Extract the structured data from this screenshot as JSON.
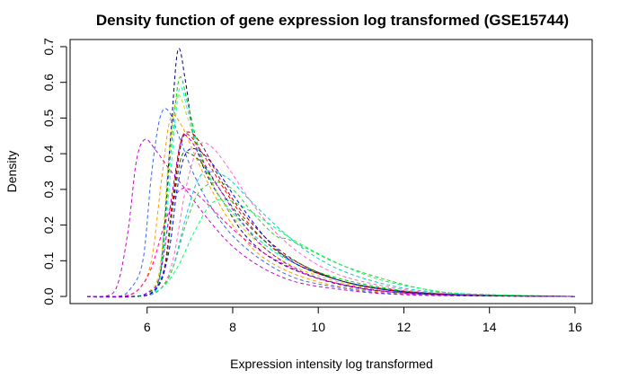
{
  "chart_data": {
    "type": "line",
    "title": "Density function of gene expression log transformed (GSE15744)",
    "xlabel": "Expression intensity log transformed",
    "ylabel": "Density",
    "xlim": [
      4.2,
      16.4
    ],
    "ylim": [
      -0.02,
      0.72
    ],
    "xticks": [
      6,
      8,
      10,
      12,
      14,
      16
    ],
    "yticks": [
      0.0,
      0.1,
      0.2,
      0.3,
      0.4,
      0.5,
      0.6,
      0.7
    ],
    "grid": false,
    "legend": "none",
    "line_style": "dashed",
    "series": [
      {
        "color": "#000080",
        "x": [
          4.6,
          5.6,
          6.0,
          6.3,
          6.55,
          6.72,
          6.9,
          7.1,
          7.4,
          7.8,
          8.3,
          9.0,
          10.0,
          11.0,
          12.0,
          13.0,
          14.0,
          16.0
        ],
        "y": [
          0,
          0,
          0.01,
          0.06,
          0.45,
          0.69,
          0.6,
          0.44,
          0.34,
          0.26,
          0.17,
          0.1,
          0.05,
          0.022,
          0.01,
          0.005,
          0.002,
          0
        ]
      },
      {
        "color": "#00cc00",
        "x": [
          4.6,
          5.6,
          6.0,
          6.3,
          6.55,
          6.75,
          6.95,
          7.2,
          7.6,
          8.1,
          8.8,
          9.5,
          10.5,
          11.5,
          12.5,
          14.0,
          16.0
        ],
        "y": [
          0,
          0,
          0.01,
          0.06,
          0.4,
          0.61,
          0.54,
          0.42,
          0.3,
          0.22,
          0.14,
          0.09,
          0.05,
          0.025,
          0.01,
          0.003,
          0
        ]
      },
      {
        "color": "#00ffcc",
        "x": [
          4.6,
          5.6,
          6.0,
          6.3,
          6.55,
          6.75,
          6.95,
          7.2,
          7.6,
          8.1,
          8.8,
          9.5,
          10.5,
          11.5,
          12.5,
          14.0,
          16.0
        ],
        "y": [
          0,
          0,
          0.01,
          0.05,
          0.35,
          0.58,
          0.52,
          0.41,
          0.3,
          0.22,
          0.14,
          0.09,
          0.045,
          0.022,
          0.01,
          0.003,
          0
        ]
      },
      {
        "color": "#cccc00",
        "x": [
          4.6,
          5.6,
          6.0,
          6.3,
          6.5,
          6.7,
          6.95,
          7.2,
          7.6,
          8.1,
          8.8,
          9.5,
          10.5,
          11.5,
          12.5,
          14.0,
          16.0
        ],
        "y": [
          0,
          0,
          0.01,
          0.08,
          0.38,
          0.56,
          0.5,
          0.4,
          0.3,
          0.21,
          0.13,
          0.08,
          0.04,
          0.02,
          0.008,
          0.002,
          0
        ]
      },
      {
        "color": "#ff9900",
        "x": [
          4.6,
          5.4,
          5.8,
          6.1,
          6.35,
          6.55,
          6.8,
          7.1,
          7.5,
          8.0,
          8.6,
          9.3,
          10.2,
          11.2,
          12.5,
          14.0,
          16.0
        ],
        "y": [
          0,
          0,
          0.02,
          0.1,
          0.34,
          0.5,
          0.48,
          0.4,
          0.3,
          0.2,
          0.12,
          0.07,
          0.035,
          0.016,
          0.006,
          0.002,
          0
        ]
      },
      {
        "color": "#3366ff",
        "x": [
          4.6,
          5.3,
          5.6,
          5.9,
          6.1,
          6.3,
          6.5,
          6.8,
          7.1,
          7.5,
          8.0,
          8.7,
          9.5,
          10.5,
          11.5,
          13.0,
          16.0
        ],
        "y": [
          0,
          0,
          0.02,
          0.1,
          0.34,
          0.5,
          0.52,
          0.43,
          0.34,
          0.25,
          0.17,
          0.1,
          0.05,
          0.025,
          0.01,
          0.003,
          0
        ]
      },
      {
        "color": "#cc00cc",
        "x": [
          4.6,
          5.0,
          5.3,
          5.55,
          5.75,
          5.95,
          6.2,
          6.5,
          6.9,
          7.4,
          8.0,
          8.7,
          9.5,
          10.5,
          11.5,
          13.0,
          16.0
        ],
        "y": [
          0,
          0,
          0.03,
          0.18,
          0.38,
          0.44,
          0.41,
          0.36,
          0.3,
          0.22,
          0.14,
          0.08,
          0.04,
          0.02,
          0.008,
          0.002,
          0
        ]
      },
      {
        "color": "#ff00aa",
        "x": [
          4.6,
          5.4,
          5.8,
          6.1,
          6.4,
          6.7,
          7.0,
          7.4,
          7.9,
          8.5,
          9.2,
          10.0,
          11.0,
          12.0,
          13.5,
          16.0
        ],
        "y": [
          0,
          0,
          0.02,
          0.08,
          0.2,
          0.29,
          0.3,
          0.26,
          0.2,
          0.14,
          0.09,
          0.05,
          0.025,
          0.01,
          0.004,
          0
        ]
      },
      {
        "color": "#ff0000",
        "x": [
          4.6,
          5.6,
          6.1,
          6.4,
          6.6,
          6.8,
          7.0,
          7.3,
          7.7,
          8.2,
          8.8,
          9.5,
          10.5,
          11.5,
          12.5,
          14.0,
          16.0
        ],
        "y": [
          0,
          0,
          0.01,
          0.08,
          0.28,
          0.44,
          0.45,
          0.4,
          0.32,
          0.23,
          0.15,
          0.09,
          0.045,
          0.022,
          0.01,
          0.003,
          0
        ]
      },
      {
        "color": "#8b0000",
        "x": [
          4.6,
          5.7,
          6.1,
          6.4,
          6.6,
          6.8,
          7.0,
          7.3,
          7.7,
          8.2,
          8.9,
          9.6,
          10.5,
          11.5,
          12.5,
          14.0,
          16.0
        ],
        "y": [
          0,
          0,
          0.01,
          0.07,
          0.26,
          0.43,
          0.46,
          0.42,
          0.33,
          0.24,
          0.15,
          0.09,
          0.045,
          0.02,
          0.009,
          0.003,
          0
        ]
      },
      {
        "color": "#006400",
        "x": [
          4.6,
          5.7,
          6.1,
          6.4,
          6.6,
          6.8,
          7.0,
          7.3,
          7.7,
          8.2,
          8.9,
          9.6,
          10.5,
          11.5,
          12.5,
          14.0,
          16.0
        ],
        "y": [
          0,
          0,
          0.01,
          0.07,
          0.25,
          0.39,
          0.4,
          0.37,
          0.3,
          0.22,
          0.14,
          0.09,
          0.045,
          0.02,
          0.009,
          0.003,
          0
        ]
      },
      {
        "color": "#ff66cc",
        "x": [
          4.6,
          5.8,
          6.3,
          6.6,
          6.9,
          7.2,
          7.5,
          7.9,
          8.4,
          9.0,
          9.7,
          10.5,
          11.5,
          12.5,
          14.0,
          16.0
        ],
        "y": [
          0,
          0,
          0.02,
          0.1,
          0.3,
          0.42,
          0.42,
          0.36,
          0.27,
          0.18,
          0.11,
          0.06,
          0.03,
          0.012,
          0.004,
          0
        ]
      },
      {
        "color": "#00cccc",
        "x": [
          4.6,
          5.8,
          6.3,
          6.6,
          6.9,
          7.2,
          7.5,
          7.9,
          8.4,
          9.0,
          9.7,
          10.5,
          11.5,
          12.5,
          14.0,
          16.0
        ],
        "y": [
          0,
          0,
          0.02,
          0.08,
          0.22,
          0.33,
          0.35,
          0.33,
          0.27,
          0.2,
          0.13,
          0.075,
          0.036,
          0.015,
          0.005,
          0
        ]
      },
      {
        "color": "#33cc33",
        "x": [
          4.6,
          5.8,
          6.3,
          6.6,
          6.9,
          7.2,
          7.6,
          8.0,
          8.5,
          9.0,
          9.3,
          9.8,
          10.5,
          11.5,
          12.5,
          13.5,
          16.0
        ],
        "y": [
          0,
          0,
          0.02,
          0.08,
          0.2,
          0.29,
          0.32,
          0.3,
          0.23,
          0.17,
          0.16,
          0.13,
          0.09,
          0.05,
          0.02,
          0.007,
          0
        ]
      },
      {
        "color": "#00ff66",
        "x": [
          4.6,
          5.8,
          6.3,
          6.7,
          7.1,
          7.5,
          7.9,
          8.4,
          8.9,
          9.4,
          10.0,
          10.7,
          11.5,
          12.5,
          13.5,
          16.0
        ],
        "y": [
          0,
          0,
          0.02,
          0.08,
          0.18,
          0.26,
          0.27,
          0.24,
          0.2,
          0.16,
          0.12,
          0.08,
          0.045,
          0.02,
          0.007,
          0
        ]
      },
      {
        "color": "#0000ff",
        "x": [
          4.6,
          5.7,
          6.2,
          6.5,
          6.7,
          6.9,
          7.2,
          7.6,
          8.1,
          8.8,
          9.5,
          10.5,
          11.5,
          12.5,
          14.0,
          16.0
        ],
        "y": [
          0,
          0,
          0.02,
          0.12,
          0.3,
          0.4,
          0.41,
          0.36,
          0.27,
          0.16,
          0.09,
          0.045,
          0.02,
          0.008,
          0.002,
          0
        ]
      },
      {
        "color": "#9900cc",
        "x": [
          4.6,
          5.6,
          6.0,
          6.3,
          6.6,
          6.8,
          7.0,
          7.3,
          7.7,
          8.2,
          8.8,
          9.6,
          10.5,
          11.5,
          13.0,
          16.0
        ],
        "y": [
          0,
          0,
          0.01,
          0.06,
          0.3,
          0.44,
          0.44,
          0.38,
          0.3,
          0.21,
          0.13,
          0.07,
          0.035,
          0.015,
          0.004,
          0
        ]
      }
    ]
  }
}
